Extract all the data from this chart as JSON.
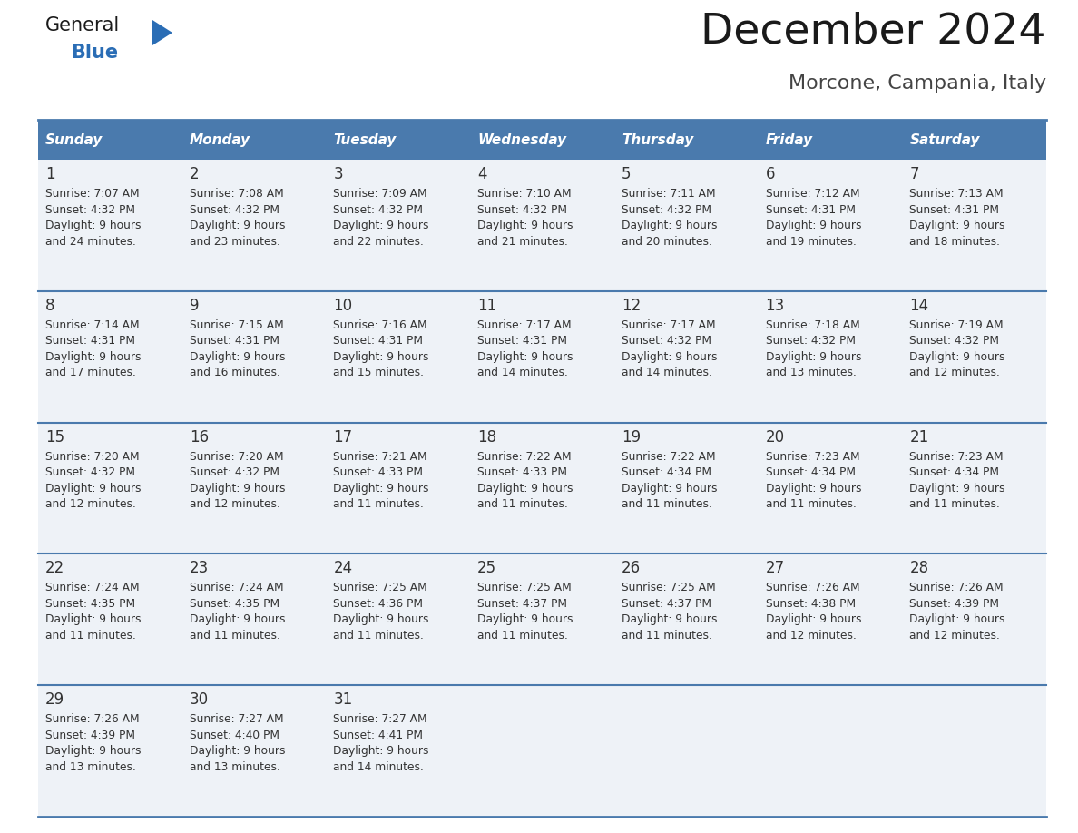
{
  "title": "December 2024",
  "subtitle": "Morcone, Campania, Italy",
  "header_color": "#4a7aad",
  "header_text_color": "#ffffff",
  "cell_bg_color": "#eef2f7",
  "border_color": "#4a7aad",
  "text_color": "#333333",
  "days_of_week": [
    "Sunday",
    "Monday",
    "Tuesday",
    "Wednesday",
    "Thursday",
    "Friday",
    "Saturday"
  ],
  "calendar_data": [
    [
      {
        "day": "1",
        "lines": [
          "Sunrise: 7:07 AM",
          "Sunset: 4:32 PM",
          "Daylight: 9 hours",
          "and 24 minutes."
        ]
      },
      {
        "day": "2",
        "lines": [
          "Sunrise: 7:08 AM",
          "Sunset: 4:32 PM",
          "Daylight: 9 hours",
          "and 23 minutes."
        ]
      },
      {
        "day": "3",
        "lines": [
          "Sunrise: 7:09 AM",
          "Sunset: 4:32 PM",
          "Daylight: 9 hours",
          "and 22 minutes."
        ]
      },
      {
        "day": "4",
        "lines": [
          "Sunrise: 7:10 AM",
          "Sunset: 4:32 PM",
          "Daylight: 9 hours",
          "and 21 minutes."
        ]
      },
      {
        "day": "5",
        "lines": [
          "Sunrise: 7:11 AM",
          "Sunset: 4:32 PM",
          "Daylight: 9 hours",
          "and 20 minutes."
        ]
      },
      {
        "day": "6",
        "lines": [
          "Sunrise: 7:12 AM",
          "Sunset: 4:31 PM",
          "Daylight: 9 hours",
          "and 19 minutes."
        ]
      },
      {
        "day": "7",
        "lines": [
          "Sunrise: 7:13 AM",
          "Sunset: 4:31 PM",
          "Daylight: 9 hours",
          "and 18 minutes."
        ]
      }
    ],
    [
      {
        "day": "8",
        "lines": [
          "Sunrise: 7:14 AM",
          "Sunset: 4:31 PM",
          "Daylight: 9 hours",
          "and 17 minutes."
        ]
      },
      {
        "day": "9",
        "lines": [
          "Sunrise: 7:15 AM",
          "Sunset: 4:31 PM",
          "Daylight: 9 hours",
          "and 16 minutes."
        ]
      },
      {
        "day": "10",
        "lines": [
          "Sunrise: 7:16 AM",
          "Sunset: 4:31 PM",
          "Daylight: 9 hours",
          "and 15 minutes."
        ]
      },
      {
        "day": "11",
        "lines": [
          "Sunrise: 7:17 AM",
          "Sunset: 4:31 PM",
          "Daylight: 9 hours",
          "and 14 minutes."
        ]
      },
      {
        "day": "12",
        "lines": [
          "Sunrise: 7:17 AM",
          "Sunset: 4:32 PM",
          "Daylight: 9 hours",
          "and 14 minutes."
        ]
      },
      {
        "day": "13",
        "lines": [
          "Sunrise: 7:18 AM",
          "Sunset: 4:32 PM",
          "Daylight: 9 hours",
          "and 13 minutes."
        ]
      },
      {
        "day": "14",
        "lines": [
          "Sunrise: 7:19 AM",
          "Sunset: 4:32 PM",
          "Daylight: 9 hours",
          "and 12 minutes."
        ]
      }
    ],
    [
      {
        "day": "15",
        "lines": [
          "Sunrise: 7:20 AM",
          "Sunset: 4:32 PM",
          "Daylight: 9 hours",
          "and 12 minutes."
        ]
      },
      {
        "day": "16",
        "lines": [
          "Sunrise: 7:20 AM",
          "Sunset: 4:32 PM",
          "Daylight: 9 hours",
          "and 12 minutes."
        ]
      },
      {
        "day": "17",
        "lines": [
          "Sunrise: 7:21 AM",
          "Sunset: 4:33 PM",
          "Daylight: 9 hours",
          "and 11 minutes."
        ]
      },
      {
        "day": "18",
        "lines": [
          "Sunrise: 7:22 AM",
          "Sunset: 4:33 PM",
          "Daylight: 9 hours",
          "and 11 minutes."
        ]
      },
      {
        "day": "19",
        "lines": [
          "Sunrise: 7:22 AM",
          "Sunset: 4:34 PM",
          "Daylight: 9 hours",
          "and 11 minutes."
        ]
      },
      {
        "day": "20",
        "lines": [
          "Sunrise: 7:23 AM",
          "Sunset: 4:34 PM",
          "Daylight: 9 hours",
          "and 11 minutes."
        ]
      },
      {
        "day": "21",
        "lines": [
          "Sunrise: 7:23 AM",
          "Sunset: 4:34 PM",
          "Daylight: 9 hours",
          "and 11 minutes."
        ]
      }
    ],
    [
      {
        "day": "22",
        "lines": [
          "Sunrise: 7:24 AM",
          "Sunset: 4:35 PM",
          "Daylight: 9 hours",
          "and 11 minutes."
        ]
      },
      {
        "day": "23",
        "lines": [
          "Sunrise: 7:24 AM",
          "Sunset: 4:35 PM",
          "Daylight: 9 hours",
          "and 11 minutes."
        ]
      },
      {
        "day": "24",
        "lines": [
          "Sunrise: 7:25 AM",
          "Sunset: 4:36 PM",
          "Daylight: 9 hours",
          "and 11 minutes."
        ]
      },
      {
        "day": "25",
        "lines": [
          "Sunrise: 7:25 AM",
          "Sunset: 4:37 PM",
          "Daylight: 9 hours",
          "and 11 minutes."
        ]
      },
      {
        "day": "26",
        "lines": [
          "Sunrise: 7:25 AM",
          "Sunset: 4:37 PM",
          "Daylight: 9 hours",
          "and 11 minutes."
        ]
      },
      {
        "day": "27",
        "lines": [
          "Sunrise: 7:26 AM",
          "Sunset: 4:38 PM",
          "Daylight: 9 hours",
          "and 12 minutes."
        ]
      },
      {
        "day": "28",
        "lines": [
          "Sunrise: 7:26 AM",
          "Sunset: 4:39 PM",
          "Daylight: 9 hours",
          "and 12 minutes."
        ]
      }
    ],
    [
      {
        "day": "29",
        "lines": [
          "Sunrise: 7:26 AM",
          "Sunset: 4:39 PM",
          "Daylight: 9 hours",
          "and 13 minutes."
        ]
      },
      {
        "day": "30",
        "lines": [
          "Sunrise: 7:27 AM",
          "Sunset: 4:40 PM",
          "Daylight: 9 hours",
          "and 13 minutes."
        ]
      },
      {
        "day": "31",
        "lines": [
          "Sunrise: 7:27 AM",
          "Sunset: 4:41 PM",
          "Daylight: 9 hours",
          "and 14 minutes."
        ]
      },
      null,
      null,
      null,
      null
    ]
  ]
}
